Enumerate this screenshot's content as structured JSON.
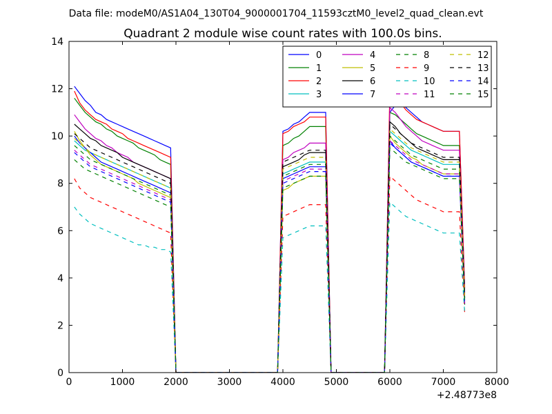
{
  "chart_data": {
    "type": "line",
    "suptitle": "Data file: modeM0/AS1A04_130T04_9000001704_11593cztM0_level2_quad_clean.evt",
    "title": "Quadrant 2 module wise count rates with 100.0s bins.",
    "xlabel": "",
    "ylabel": "",
    "x_offset_label": "+2.48773e8",
    "xlim": [
      0,
      8000
    ],
    "ylim": [
      0,
      14
    ],
    "xticks": [
      0,
      1000,
      2000,
      3000,
      4000,
      5000,
      6000,
      7000,
      8000
    ],
    "yticks": [
      0,
      2,
      4,
      6,
      8,
      10,
      12,
      14
    ],
    "grid": false,
    "legend_position": "top-right",
    "segments": [
      {
        "x": [
          100,
          200,
          300,
          400,
          500,
          600,
          700,
          800,
          900,
          1000,
          1100,
          1200,
          1300,
          1400,
          1500,
          1600,
          1700,
          1800,
          1900,
          2000
        ]
      },
      {
        "x": [
          2000,
          2100,
          2200,
          2300,
          2400,
          2500,
          2600,
          2700,
          2800,
          2900,
          3000,
          3100,
          3200,
          3300,
          3400,
          3500,
          3600,
          3700,
          3800,
          3900
        ]
      },
      {
        "x": [
          3900,
          4000,
          4100,
          4200,
          4300,
          4400,
          4500,
          4600,
          4700,
          4800
        ]
      },
      {
        "x": [
          4800,
          4900,
          5000,
          5100,
          5200,
          5300,
          5400,
          5500,
          5600,
          5700,
          5800,
          5900
        ]
      },
      {
        "x": [
          5900,
          6000,
          6100,
          6200,
          6300,
          6400,
          6500,
          6600,
          6700,
          6800,
          6900,
          7000,
          7100,
          7200,
          7300,
          7400
        ]
      }
    ],
    "series": [
      {
        "name": "0",
        "color": "#0000ff",
        "dash": "solid",
        "levels": [
          12.1,
          11.8,
          11.5,
          11.3,
          11.0,
          10.9,
          10.7,
          10.6,
          10.5,
          10.4,
          10.3,
          10.2,
          10.1,
          10.0,
          9.9,
          9.8,
          9.7,
          9.6,
          9.5
        ],
        "seg2": [
          10.2,
          10.3,
          10.5,
          10.6,
          10.8,
          11.0
        ],
        "seg4": [
          11.0,
          11.3,
          11.5,
          11.2,
          11.0,
          10.8,
          10.6,
          10.5,
          10.4,
          10.3,
          10.2
        ]
      },
      {
        "name": "1",
        "color": "#008000",
        "dash": "solid",
        "levels": [
          11.6,
          11.3,
          11.0,
          10.8,
          10.6,
          10.5,
          10.3,
          10.2,
          10.0,
          9.9,
          9.8,
          9.7,
          9.5,
          9.4,
          9.3,
          9.2,
          9.0,
          8.9,
          8.8
        ],
        "seg2": [
          9.6,
          9.7,
          9.9,
          10.0,
          10.2,
          10.4
        ],
        "seg4": [
          11.0,
          10.9,
          10.7,
          10.5,
          10.3,
          10.1,
          10.0,
          9.9,
          9.8,
          9.7,
          9.6
        ]
      },
      {
        "name": "2",
        "color": "#ff0000",
        "dash": "solid",
        "levels": [
          11.9,
          11.4,
          11.1,
          10.9,
          10.7,
          10.6,
          10.5,
          10.3,
          10.2,
          10.1,
          9.9,
          9.8,
          9.7,
          9.6,
          9.5,
          9.4,
          9.3,
          9.2,
          9.1
        ],
        "seg2": [
          10.1,
          10.2,
          10.4,
          10.5,
          10.6,
          10.8
        ],
        "seg4": [
          12.0,
          11.7,
          11.4,
          11.1,
          10.9,
          10.7,
          10.6,
          10.5,
          10.4,
          10.3,
          10.2
        ]
      },
      {
        "name": "3",
        "color": "#00bfbf",
        "dash": "solid",
        "levels": [
          9.8,
          9.6,
          9.4,
          9.3,
          9.2,
          9.1,
          9.0,
          8.9,
          8.8,
          8.7,
          8.6,
          8.5,
          8.4,
          8.3,
          8.2,
          8.1,
          8.0,
          7.9,
          7.8
        ],
        "seg2": [
          8.4,
          8.5,
          8.6,
          8.7,
          8.8,
          8.9
        ],
        "seg4": [
          10.2,
          10.0,
          9.8,
          9.6,
          9.4,
          9.3,
          9.2,
          9.1,
          9.0,
          8.9,
          8.8
        ]
      },
      {
        "name": "4",
        "color": "#bf00bf",
        "dash": "solid",
        "levels": [
          10.9,
          10.6,
          10.3,
          10.1,
          9.9,
          9.8,
          9.6,
          9.5,
          9.3,
          9.2,
          9.1,
          8.9,
          8.8,
          8.7,
          8.6,
          8.5,
          8.4,
          8.3,
          8.2
        ],
        "seg2": [
          9.0,
          9.1,
          9.3,
          9.4,
          9.5,
          9.7
        ],
        "seg4": [
          11.2,
          11.0,
          10.7,
          10.4,
          10.2,
          10.0,
          9.8,
          9.7,
          9.6,
          9.5,
          9.4
        ]
      },
      {
        "name": "5",
        "color": "#bfbf00",
        "dash": "solid",
        "levels": [
          10.2,
          9.8,
          9.5,
          9.2,
          9.0,
          8.8,
          8.7,
          8.6,
          8.5,
          8.4,
          8.3,
          8.2,
          8.0,
          7.9,
          7.8,
          7.7,
          7.6,
          7.5,
          7.4
        ],
        "seg2": [
          7.7,
          7.8,
          8.0,
          8.1,
          8.2,
          8.3
        ],
        "seg4": [
          10.0,
          9.7,
          9.5,
          9.3,
          9.1,
          9.0,
          8.8,
          8.7,
          8.6,
          8.5,
          8.4
        ]
      },
      {
        "name": "6",
        "color": "#000000",
        "dash": "solid",
        "levels": [
          10.5,
          10.3,
          10.1,
          9.9,
          9.8,
          9.6,
          9.5,
          9.4,
          9.3,
          9.1,
          9.0,
          8.9,
          8.8,
          8.7,
          8.6,
          8.5,
          8.4,
          8.3,
          8.2
        ],
        "seg2": [
          8.7,
          8.8,
          8.9,
          9.0,
          9.2,
          9.3
        ],
        "seg4": [
          10.6,
          10.4,
          10.1,
          9.9,
          9.7,
          9.5,
          9.4,
          9.3,
          9.2,
          9.1,
          9.0
        ]
      },
      {
        "name": "7",
        "color": "#0000ff",
        "dash": "solid",
        "levels": [
          10.0,
          9.7,
          9.5,
          9.3,
          9.1,
          8.9,
          8.8,
          8.7,
          8.6,
          8.5,
          8.4,
          8.3,
          8.2,
          8.1,
          8.0,
          7.9,
          7.8,
          7.7,
          7.6
        ],
        "seg2": [
          8.2,
          8.3,
          8.4,
          8.5,
          8.6,
          8.7
        ],
        "seg4": [
          9.8,
          9.5,
          9.3,
          9.1,
          8.9,
          8.8,
          8.7,
          8.6,
          8.5,
          8.4,
          8.3
        ]
      },
      {
        "name": "8",
        "color": "#008000",
        "dash": "dashed",
        "levels": [
          9.6,
          9.4,
          9.2,
          9.0,
          8.9,
          8.8,
          8.7,
          8.6,
          8.5,
          8.4,
          8.3,
          8.2,
          8.1,
          8.0,
          7.9,
          7.8,
          7.7,
          7.6,
          7.5
        ],
        "seg2": [
          8.3,
          8.4,
          8.5,
          8.6,
          8.7,
          8.8
        ],
        "seg4": [
          10.0,
          9.8,
          9.6,
          9.4,
          9.2,
          9.1,
          9.0,
          8.9,
          8.8,
          8.7,
          8.6
        ]
      },
      {
        "name": "9",
        "color": "#ff0000",
        "dash": "dashed",
        "levels": [
          8.2,
          7.8,
          7.6,
          7.4,
          7.3,
          7.2,
          7.1,
          7.0,
          6.9,
          6.8,
          6.7,
          6.6,
          6.5,
          6.4,
          6.3,
          6.2,
          6.1,
          6.0,
          5.9
        ],
        "seg2": [
          6.6,
          6.7,
          6.8,
          6.9,
          7.0,
          7.1
        ],
        "seg4": [
          8.3,
          8.1,
          7.9,
          7.7,
          7.5,
          7.3,
          7.2,
          7.1,
          7.0,
          6.9,
          6.8
        ]
      },
      {
        "name": "10",
        "color": "#00bfbf",
        "dash": "dashed",
        "levels": [
          7.0,
          6.7,
          6.5,
          6.3,
          6.2,
          6.1,
          6.0,
          5.9,
          5.8,
          5.7,
          5.6,
          5.5,
          5.4,
          5.4,
          5.3,
          5.3,
          5.2,
          5.2,
          5.1
        ],
        "seg2": [
          5.7,
          5.8,
          5.9,
          6.0,
          6.1,
          6.2
        ],
        "seg4": [
          7.2,
          7.0,
          6.8,
          6.6,
          6.5,
          6.4,
          6.3,
          6.2,
          6.1,
          6.0,
          5.9
        ]
      },
      {
        "name": "11",
        "color": "#bf00bf",
        "dash": "dashed",
        "levels": [
          9.4,
          9.2,
          9.0,
          8.8,
          8.7,
          8.6,
          8.5,
          8.4,
          8.3,
          8.2,
          8.1,
          8.0,
          7.9,
          7.8,
          7.7,
          7.6,
          7.5,
          7.4,
          7.3
        ],
        "seg2": [
          8.1,
          8.2,
          8.3,
          8.4,
          8.5,
          8.6
        ],
        "seg4": [
          9.8,
          9.6,
          9.4,
          9.2,
          9.0,
          8.9,
          8.8,
          8.7,
          8.6,
          8.5,
          8.4
        ]
      },
      {
        "name": "12",
        "color": "#bfbf00",
        "dash": "dashed",
        "levels": [
          9.9,
          9.7,
          9.5,
          9.3,
          9.2,
          9.1,
          9.0,
          8.9,
          8.8,
          8.7,
          8.6,
          8.5,
          8.4,
          8.3,
          8.2,
          8.1,
          8.0,
          7.9,
          7.8
        ],
        "seg2": [
          8.6,
          8.7,
          8.8,
          8.9,
          9.0,
          9.1
        ],
        "seg4": [
          10.3,
          10.1,
          9.9,
          9.7,
          9.5,
          9.4,
          9.3,
          9.2,
          9.1,
          9.0,
          8.9
        ]
      },
      {
        "name": "13",
        "color": "#000000",
        "dash": "dashed",
        "levels": [
          10.1,
          9.9,
          9.7,
          9.5,
          9.4,
          9.3,
          9.2,
          9.1,
          9.0,
          8.9,
          8.8,
          8.7,
          8.6,
          8.5,
          8.4,
          8.3,
          8.2,
          8.1,
          8.0
        ],
        "seg2": [
          8.9,
          9.0,
          9.1,
          9.2,
          9.3,
          9.4
        ],
        "seg4": [
          10.5,
          10.3,
          10.1,
          9.9,
          9.7,
          9.6,
          9.5,
          9.4,
          9.3,
          9.2,
          9.1
        ]
      },
      {
        "name": "14",
        "color": "#0000ff",
        "dash": "dashed",
        "levels": [
          9.3,
          9.1,
          8.9,
          8.7,
          8.6,
          8.5,
          8.4,
          8.3,
          8.2,
          8.1,
          8.0,
          7.9,
          7.8,
          7.7,
          7.6,
          7.5,
          7.4,
          7.3,
          7.2
        ],
        "seg2": [
          8.0,
          8.1,
          8.2,
          8.3,
          8.4,
          8.5
        ],
        "seg4": [
          9.7,
          9.5,
          9.3,
          9.1,
          8.9,
          8.8,
          8.7,
          8.6,
          8.5,
          8.4,
          8.3
        ]
      },
      {
        "name": "15",
        "color": "#008000",
        "dash": "dashed",
        "levels": [
          9.0,
          8.8,
          8.6,
          8.5,
          8.4,
          8.3,
          8.2,
          8.1,
          8.0,
          7.9,
          7.8,
          7.7,
          7.6,
          7.5,
          7.4,
          7.3,
          7.2,
          7.1,
          7.0
        ],
        "seg2": [
          7.8,
          7.9,
          8.0,
          8.1,
          8.2,
          8.3
        ],
        "seg4": [
          9.5,
          9.3,
          9.1,
          8.9,
          8.8,
          8.7,
          8.6,
          8.5,
          8.4,
          8.3,
          8.2
        ]
      }
    ]
  }
}
